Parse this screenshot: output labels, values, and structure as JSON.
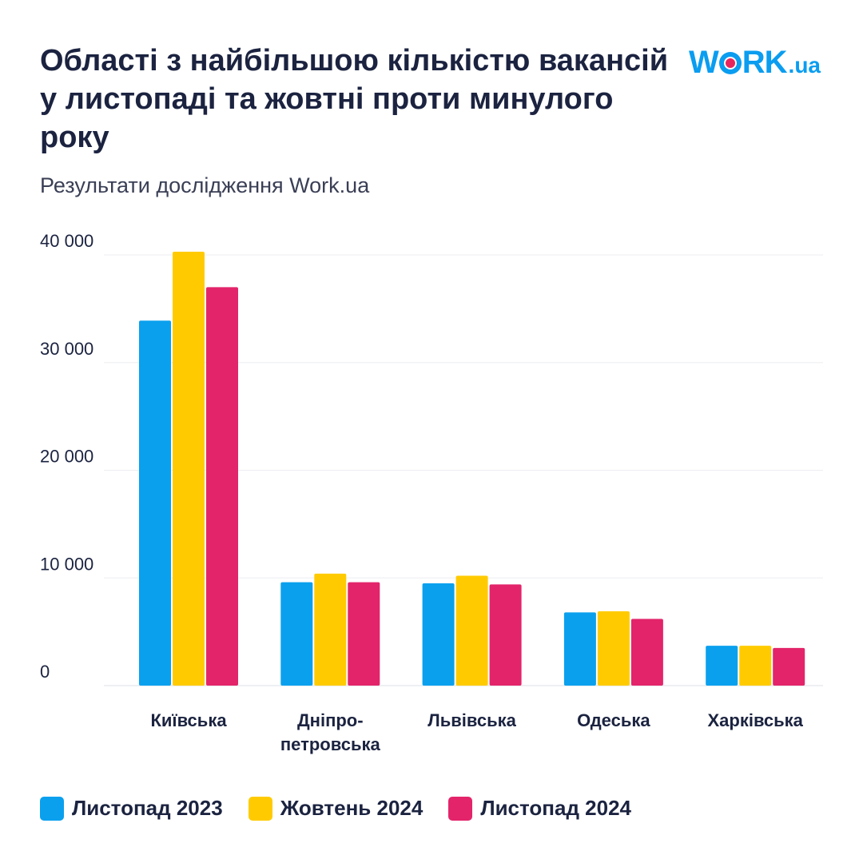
{
  "header": {
    "title": "Області з найбільшою кількістю вакансій у листопаді та жовтні проти минулого року",
    "subtitle": "Результати дослідження Work.ua"
  },
  "logo": {
    "text_before": "W",
    "text_after": "RK",
    "tld": ".ua",
    "colors": {
      "primary": "#0a9df0",
      "accent": "#e8265e"
    }
  },
  "chart_data": {
    "type": "bar",
    "categories": [
      [
        "Київська"
      ],
      [
        "Дніпро-",
        "петровська"
      ],
      [
        "Львівська"
      ],
      [
        "Одеська"
      ],
      [
        "Харківська"
      ]
    ],
    "series": [
      {
        "name": "Листопад 2023",
        "color": "#0aa0ee",
        "values": [
          33900,
          9600,
          9500,
          6800,
          3700
        ]
      },
      {
        "name": "Жовтень 2024",
        "color": "#ffcb00",
        "values": [
          40300,
          10400,
          10200,
          6900,
          3700
        ]
      },
      {
        "name": "Листопад 2024",
        "color": "#e3246a",
        "values": [
          37000,
          9600,
          9400,
          6200,
          3500
        ]
      }
    ],
    "y_ticks": [
      "0",
      "10 000",
      "20 000",
      "30 000",
      "40 000"
    ],
    "y_tick_values": [
      0,
      10000,
      20000,
      30000,
      40000
    ],
    "ylim": [
      0,
      40000
    ],
    "grid": true,
    "legend_position": "bottom-left"
  }
}
